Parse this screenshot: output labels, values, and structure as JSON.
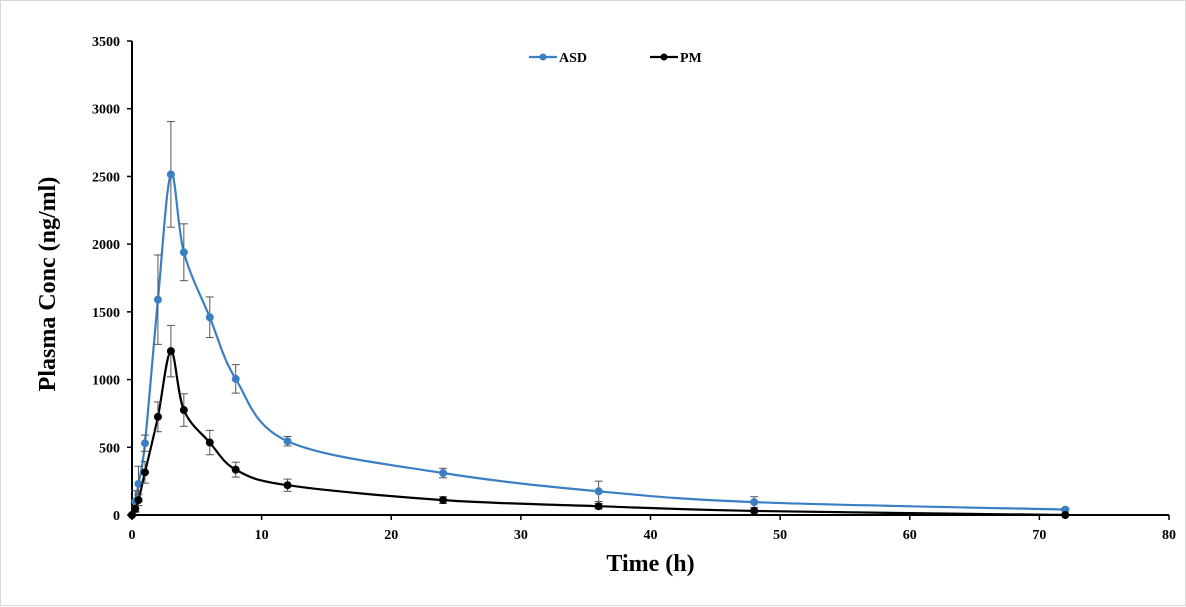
{
  "chart_data": {
    "type": "line",
    "title": "",
    "xlabel": "Time (h)",
    "ylabel": "Plasma Conc (ng/ml)",
    "xlim": [
      0,
      80
    ],
    "ylim": [
      0,
      3500
    ],
    "x_ticks": [
      0,
      10,
      20,
      30,
      40,
      50,
      60,
      70,
      80
    ],
    "y_ticks": [
      0,
      500,
      1000,
      1500,
      2000,
      2500,
      3000,
      3500
    ],
    "grid": false,
    "legend_position": "top-center",
    "series": [
      {
        "name": "ASD",
        "color": "#3a7fc4",
        "marker": "circle",
        "x": [
          0,
          0.25,
          0.5,
          1,
          2,
          3,
          4,
          6,
          8,
          12,
          24,
          36,
          48,
          72
        ],
        "y": [
          0,
          100,
          230,
          530,
          1590,
          2515,
          1940,
          1460,
          1005,
          545,
          310,
          175,
          95,
          40
        ],
        "error": [
          0,
          80,
          130,
          60,
          330,
          390,
          210,
          150,
          105,
          35,
          35,
          75,
          40,
          10
        ]
      },
      {
        "name": "PM",
        "color": "#000000",
        "marker": "circle",
        "x": [
          0,
          0.25,
          0.5,
          1,
          2,
          3,
          4,
          6,
          8,
          12,
          24,
          36,
          48,
          72
        ],
        "y": [
          0,
          45,
          110,
          315,
          725,
          1210,
          775,
          535,
          335,
          220,
          110,
          65,
          30,
          0
        ],
        "error": [
          0,
          20,
          40,
          80,
          110,
          190,
          120,
          90,
          55,
          45,
          25,
          20,
          10,
          0
        ]
      }
    ]
  }
}
